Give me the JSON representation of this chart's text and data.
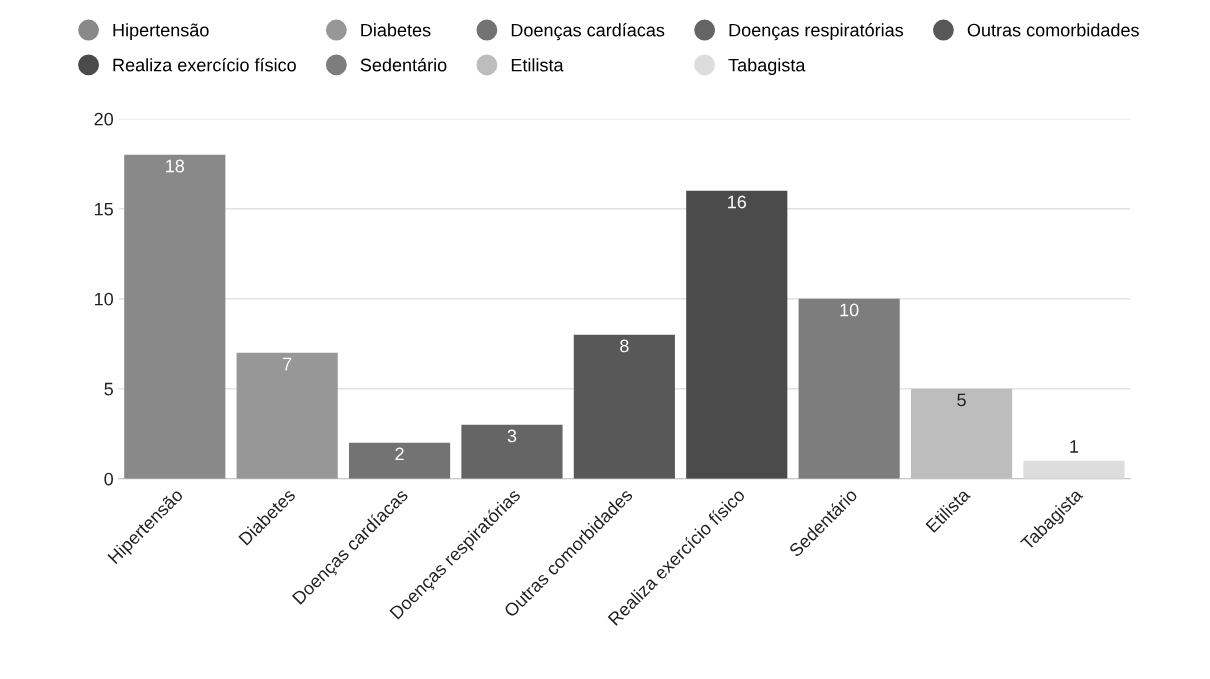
{
  "chart_data": {
    "type": "bar",
    "categories": [
      "Hipertensão",
      "Diabetes",
      "Doenças cardíacas",
      "Doenças respiratórias",
      "Outras comorbidades",
      "Realiza exercício físico",
      "Sedentário",
      "Etilista",
      "Tabagista"
    ],
    "series": [
      {
        "name": "Hipertensão",
        "color": "#898989",
        "values": [
          18,
          null,
          null,
          null,
          null,
          null,
          null,
          null,
          null
        ]
      },
      {
        "name": "Diabetes",
        "color": "#979797",
        "values": [
          null,
          7,
          null,
          null,
          null,
          null,
          null,
          null,
          null
        ]
      },
      {
        "name": "Doenças cardíacas",
        "color": "#737373",
        "values": [
          null,
          null,
          2,
          null,
          null,
          null,
          null,
          null,
          null
        ]
      },
      {
        "name": "Doenças respiratórias",
        "color": "#656565",
        "values": [
          null,
          null,
          null,
          3,
          null,
          null,
          null,
          null,
          null
        ]
      },
      {
        "name": "Outras comorbidades",
        "color": "#585858",
        "values": [
          null,
          null,
          null,
          null,
          8,
          null,
          null,
          null,
          null
        ]
      },
      {
        "name": "Realiza exercício físico",
        "color": "#4b4b4b",
        "values": [
          null,
          null,
          null,
          null,
          null,
          16,
          null,
          null,
          null
        ]
      },
      {
        "name": "Sedentário",
        "color": "#7d7d7d",
        "values": [
          null,
          null,
          null,
          null,
          null,
          null,
          10,
          null,
          null
        ]
      },
      {
        "name": "Etilista",
        "color": "#bdbdbd",
        "values": [
          null,
          null,
          null,
          null,
          null,
          null,
          null,
          5,
          null
        ]
      },
      {
        "name": "Tabagista",
        "color": "#dddddd",
        "values": [
          null,
          null,
          null,
          null,
          null,
          null,
          null,
          null,
          1
        ]
      }
    ],
    "ylim": [
      0,
      20
    ],
    "yticks": [
      0,
      5,
      10,
      15,
      20
    ],
    "grid": "y",
    "legend": "top",
    "data_labels": true
  }
}
